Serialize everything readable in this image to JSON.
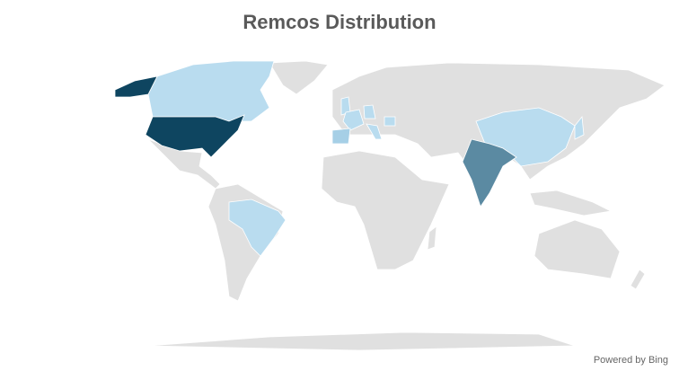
{
  "title": "Remcos Distribution",
  "attribution": "Powered by Bing",
  "colors": {
    "high": "#0e4560",
    "medium": "#5b8aa2",
    "low": "#b9dcef",
    "low_plus": "#a6cfe6",
    "no_data": "#e0e0e0"
  },
  "chart_data": {
    "type": "map",
    "title": "Remcos Distribution",
    "regions": [
      {
        "name": "United States",
        "shade": "high"
      },
      {
        "name": "India",
        "shade": "medium"
      },
      {
        "name": "Spain",
        "shade": "low_plus"
      },
      {
        "name": "Canada",
        "shade": "low"
      },
      {
        "name": "Brazil",
        "shade": "low"
      },
      {
        "name": "China",
        "shade": "low"
      },
      {
        "name": "United Kingdom",
        "shade": "low"
      },
      {
        "name": "France",
        "shade": "low"
      },
      {
        "name": "Germany",
        "shade": "low"
      },
      {
        "name": "Italy",
        "shade": "low"
      },
      {
        "name": "Romania",
        "shade": "low"
      },
      {
        "name": "Japan",
        "shade": "low"
      }
    ]
  }
}
